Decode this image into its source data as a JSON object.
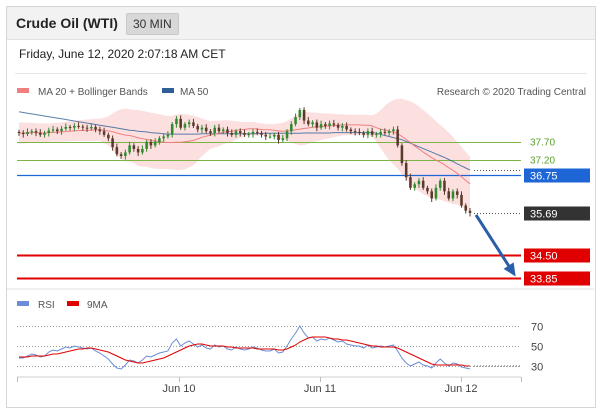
{
  "header": {
    "instrument": "Crude Oil (WTI)",
    "timeframe": "30 MIN",
    "datetime": "Friday, June 12, 2020 2:07:18 AM CET"
  },
  "legend": {
    "ma20": {
      "label": "MA 20 + Bollinger Bands",
      "color": "#f08080"
    },
    "ma50": {
      "label": "MA 50",
      "color": "#2f5f98"
    },
    "credit": "Research © 2020 Trading Central"
  },
  "rsi_legend": {
    "rsi": {
      "label": "RSI",
      "color": "#6b8cd6"
    },
    "ma9": {
      "label": "9MA",
      "color": "#e00000"
    }
  },
  "chart_data": [
    {
      "type": "candlestick",
      "ylim": [
        33.85,
        38.6
      ],
      "x_tick_labels": [
        "Jun 10",
        "Jun 11",
        "Jun 12"
      ],
      "levels": [
        {
          "value": 37.7,
          "label": "37.70",
          "kind": "resistance",
          "color": "#7cb342"
        },
        {
          "value": 37.2,
          "label": "37.20",
          "kind": "resistance",
          "color": "#7cb342"
        },
        {
          "value": 36.75,
          "label": "36.75",
          "kind": "pivot",
          "color": "#1e66d6"
        },
        {
          "value": 35.69,
          "label": "35.69",
          "kind": "last",
          "color": "#333333"
        },
        {
          "value": 34.5,
          "label": "34.50",
          "kind": "support",
          "color": "#e00000"
        },
        {
          "value": 33.85,
          "label": "33.85",
          "kind": "support",
          "color": "#e00000"
        }
      ],
      "close": [
        37.95,
        37.92,
        37.98,
        38.0,
        37.96,
        37.9,
        37.95,
        38.02,
        38.05,
        38.0,
        38.07,
        38.12,
        38.1,
        38.15,
        38.13,
        38.1,
        38.08,
        38.12,
        38.05,
        38.0,
        37.9,
        37.8,
        37.55,
        37.35,
        37.3,
        37.4,
        37.6,
        37.5,
        37.4,
        37.5,
        37.7,
        37.6,
        37.7,
        37.8,
        37.85,
        37.9,
        38.2,
        38.35,
        38.1,
        38.2,
        38.25,
        38.15,
        38.05,
        38.1,
        38.0,
        37.95,
        38.1,
        38.0,
        38.05,
        37.95,
        37.9,
        38.0,
        37.95,
        37.9,
        37.92,
        37.98,
        37.95,
        37.9,
        37.85,
        37.85,
        37.9,
        37.75,
        37.8,
        38.0,
        38.2,
        38.4,
        38.6,
        38.3,
        38.2,
        38.25,
        38.1,
        38.2,
        38.15,
        38.22,
        38.18,
        38.1,
        38.15,
        38.05,
        38.0,
        37.98,
        37.95,
        37.9,
        38.0,
        37.9,
        37.92,
        37.98,
        37.95,
        38.0,
        38.05,
        37.6,
        37.1,
        36.7,
        36.4,
        36.5,
        36.6,
        36.4,
        36.3,
        36.1,
        36.4,
        36.6,
        36.3,
        36.1,
        36.3,
        36.2,
        35.9,
        35.75,
        35.69
      ],
      "ma20": [
        37.95,
        37.95,
        37.95,
        37.96,
        37.96,
        37.95,
        37.95,
        37.96,
        37.97,
        37.97,
        37.98,
        37.99,
        38.0,
        38.01,
        38.02,
        38.02,
        38.03,
        38.03,
        38.04,
        38.04,
        38.02,
        38.01,
        37.99,
        37.95,
        37.92,
        37.89,
        37.88,
        37.85,
        37.81,
        37.79,
        37.77,
        37.74,
        37.72,
        37.71,
        37.69,
        37.68,
        37.68,
        37.69,
        37.69,
        37.7,
        37.72,
        37.74,
        37.78,
        37.83,
        37.86,
        37.89,
        37.92,
        37.94,
        37.97,
        37.99,
        38.0,
        38.02,
        38.04,
        38.05,
        38.07,
        38.07,
        38.06,
        38.05,
        38.04,
        38.04,
        38.03,
        38.01,
        38.0,
        38.01,
        38.02,
        38.04,
        38.06,
        38.08,
        38.09,
        38.11,
        38.12,
        38.13,
        38.14,
        38.15,
        38.16,
        38.17,
        38.18,
        38.18,
        38.18,
        38.18,
        38.18,
        38.17,
        38.17,
        38.15,
        38.1,
        38.06,
        38.03,
        38.0,
        37.97,
        37.93,
        37.85,
        37.77,
        37.68,
        37.58,
        37.5,
        37.41,
        37.33,
        37.25,
        37.18,
        37.12,
        37.05,
        36.97,
        36.89,
        36.81,
        36.71,
        36.61,
        36.51
      ],
      "bb_upper": [
        38.25,
        38.25,
        38.24,
        38.24,
        38.23,
        38.22,
        38.22,
        38.22,
        38.23,
        38.24,
        38.25,
        38.27,
        38.28,
        38.3,
        38.31,
        38.32,
        38.33,
        38.34,
        38.35,
        38.35,
        38.38,
        38.42,
        38.5,
        38.58,
        38.62,
        38.64,
        38.62,
        38.6,
        38.6,
        38.58,
        38.55,
        38.52,
        38.5,
        38.48,
        38.45,
        38.43,
        38.44,
        38.48,
        38.48,
        38.48,
        38.46,
        38.44,
        38.4,
        38.36,
        38.32,
        38.28,
        38.3,
        38.3,
        38.31,
        38.31,
        38.3,
        38.28,
        38.27,
        38.26,
        38.26,
        38.26,
        38.24,
        38.22,
        38.2,
        38.2,
        38.2,
        38.22,
        38.24,
        38.28,
        38.36,
        38.44,
        38.52,
        38.55,
        38.54,
        38.53,
        38.52,
        38.51,
        38.5,
        38.5,
        38.49,
        38.48,
        38.48,
        38.47,
        38.47,
        38.47,
        38.47,
        38.47,
        38.46,
        38.45,
        38.5,
        38.6,
        38.72,
        38.82,
        38.88,
        38.92,
        38.92,
        38.88,
        38.84,
        38.78,
        38.7,
        38.6,
        38.5,
        38.4,
        38.28,
        38.18,
        38.08,
        37.96,
        37.84,
        37.7,
        37.56,
        37.42,
        37.28
      ],
      "bb_lower": [
        37.65,
        37.65,
        37.66,
        37.68,
        37.69,
        37.68,
        37.68,
        37.7,
        37.71,
        37.7,
        37.71,
        37.71,
        37.72,
        37.72,
        37.73,
        37.72,
        37.73,
        37.72,
        37.73,
        37.73,
        37.66,
        37.6,
        37.48,
        37.32,
        37.22,
        37.14,
        37.14,
        37.1,
        37.02,
        37.0,
        36.99,
        36.96,
        36.94,
        36.94,
        36.93,
        36.93,
        36.92,
        36.9,
        36.9,
        36.92,
        36.98,
        37.04,
        37.16,
        37.3,
        37.4,
        37.5,
        37.54,
        37.58,
        37.63,
        37.67,
        37.7,
        37.76,
        37.81,
        37.84,
        37.88,
        37.88,
        37.88,
        37.88,
        37.88,
        37.88,
        37.86,
        37.8,
        37.76,
        37.74,
        37.68,
        37.64,
        37.6,
        37.61,
        37.64,
        37.69,
        37.72,
        37.75,
        37.78,
        37.8,
        37.83,
        37.86,
        37.88,
        37.89,
        37.89,
        37.89,
        37.89,
        37.87,
        37.88,
        37.85,
        37.7,
        37.52,
        37.34,
        37.18,
        37.06,
        36.94,
        36.78,
        36.66,
        36.52,
        36.38,
        36.3,
        36.22,
        36.16,
        36.1,
        36.08,
        36.06,
        36.02,
        35.98,
        35.94,
        35.92,
        35.86,
        35.8,
        35.74
      ],
      "ma50": [
        38.55,
        38.53,
        38.51,
        38.49,
        38.47,
        38.45,
        38.43,
        38.41,
        38.39,
        38.37,
        38.35,
        38.33,
        38.31,
        38.29,
        38.27,
        38.25,
        38.23,
        38.21,
        38.19,
        38.17,
        38.15,
        38.13,
        38.11,
        38.09,
        38.07,
        38.05,
        38.03,
        38.02,
        38.0,
        37.99,
        37.98,
        37.96,
        37.95,
        37.94,
        37.93,
        37.92,
        37.92,
        37.92,
        37.92,
        37.92,
        37.92,
        37.92,
        37.92,
        37.93,
        37.93,
        37.93,
        37.93,
        37.93,
        37.93,
        37.93,
        37.93,
        37.93,
        37.93,
        37.93,
        37.93,
        37.93,
        37.93,
        37.94,
        37.94,
        37.94,
        37.94,
        37.94,
        37.94,
        37.94,
        37.94,
        37.94,
        37.94,
        37.95,
        37.95,
        37.95,
        37.95,
        37.95,
        37.95,
        37.95,
        37.96,
        37.96,
        37.96,
        37.96,
        37.96,
        37.96,
        37.96,
        37.96,
        37.96,
        37.96,
        37.94,
        37.91,
        37.88,
        37.85,
        37.82,
        37.79,
        37.76,
        37.71,
        37.66,
        37.61,
        37.56,
        37.51,
        37.46,
        37.41,
        37.36,
        37.31,
        37.26,
        37.2,
        37.14,
        37.08,
        37.02,
        36.96,
        36.9
      ]
    },
    {
      "type": "line",
      "name": "RSI",
      "ylim": [
        20,
        80
      ],
      "y_ticks": [
        70,
        50,
        30
      ],
      "rsi": [
        38,
        38,
        40,
        42,
        41,
        39,
        40,
        44,
        46,
        45,
        47,
        49,
        48,
        50,
        49,
        48,
        47,
        48,
        45,
        43,
        40,
        37,
        32,
        28,
        27,
        31,
        36,
        35,
        33,
        36,
        40,
        39,
        41,
        43,
        44,
        45,
        53,
        57,
        50,
        53,
        55,
        52,
        49,
        51,
        48,
        47,
        51,
        49,
        50,
        47,
        46,
        49,
        47,
        46,
        47,
        49,
        48,
        46,
        45,
        45,
        47,
        43,
        44,
        50,
        57,
        63,
        70,
        63,
        58,
        59,
        55,
        57,
        56,
        58,
        56,
        54,
        55,
        52,
        51,
        50,
        50,
        48,
        51,
        48,
        49,
        50,
        49,
        50,
        51,
        45,
        38,
        33,
        30,
        32,
        34,
        31,
        30,
        28,
        33,
        37,
        33,
        30,
        33,
        32,
        29,
        28,
        27
      ],
      "ma9": [
        39,
        39,
        39,
        40,
        40,
        40,
        40,
        41,
        42,
        42,
        43,
        44,
        45,
        46,
        47,
        47,
        48,
        48,
        47,
        46,
        45,
        44,
        42,
        40,
        38,
        36,
        35,
        34,
        33,
        33,
        34,
        35,
        36,
        37,
        38,
        40,
        42,
        44,
        46,
        48,
        50,
        51,
        52,
        52,
        51,
        50,
        50,
        50,
        50,
        49,
        49,
        48,
        48,
        48,
        48,
        48,
        47,
        47,
        47,
        47,
        47,
        46,
        46,
        47,
        49,
        51,
        54,
        56,
        58,
        59,
        59,
        59,
        59,
        58,
        57,
        57,
        56,
        56,
        55,
        54,
        53,
        52,
        51,
        50,
        50,
        49,
        49,
        49,
        49,
        48,
        46,
        44,
        42,
        40,
        38,
        36,
        34,
        32,
        31,
        31,
        31,
        31,
        31,
        31,
        31,
        30,
        30
      ]
    }
  ]
}
